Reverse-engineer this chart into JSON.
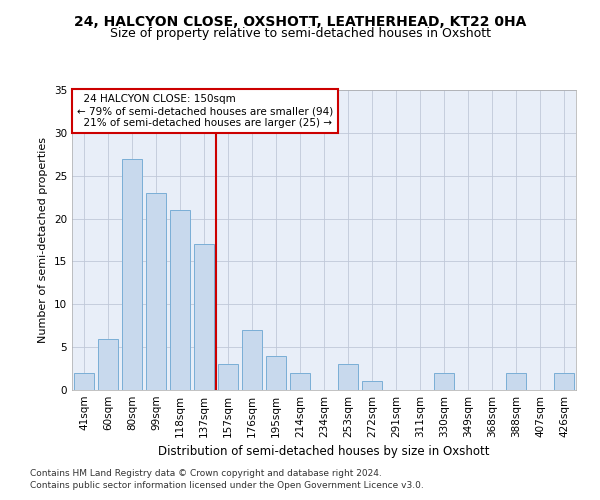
{
  "title1": "24, HALCYON CLOSE, OXSHOTT, LEATHERHEAD, KT22 0HA",
  "title2": "Size of property relative to semi-detached houses in Oxshott",
  "xlabel": "Distribution of semi-detached houses by size in Oxshott",
  "ylabel": "Number of semi-detached properties",
  "categories": [
    "41sqm",
    "60sqm",
    "80sqm",
    "99sqm",
    "118sqm",
    "137sqm",
    "157sqm",
    "176sqm",
    "195sqm",
    "214sqm",
    "234sqm",
    "253sqm",
    "272sqm",
    "291sqm",
    "311sqm",
    "330sqm",
    "349sqm",
    "368sqm",
    "388sqm",
    "407sqm",
    "426sqm"
  ],
  "values": [
    2,
    6,
    27,
    23,
    21,
    17,
    3,
    7,
    4,
    2,
    0,
    3,
    1,
    0,
    0,
    2,
    0,
    0,
    2,
    0,
    2
  ],
  "bar_color": "#c8d9ed",
  "bar_edge_color": "#7aaed6",
  "vline_color": "#cc0000",
  "vline_bin_index": 5.5,
  "property_label": "24 HALCYON CLOSE: 150sqm",
  "pct_smaller": 79,
  "n_smaller": 94,
  "pct_larger": 21,
  "n_larger": 25,
  "annotation_box_color": "#ffffff",
  "annotation_border_color": "#cc0000",
  "ylim": [
    0,
    35
  ],
  "yticks": [
    0,
    5,
    10,
    15,
    20,
    25,
    30,
    35
  ],
  "grid_color": "#c0c8d8",
  "bg_color": "#e8eef8",
  "footer1": "Contains HM Land Registry data © Crown copyright and database right 2024.",
  "footer2": "Contains public sector information licensed under the Open Government Licence v3.0.",
  "title1_fontsize": 10,
  "title2_fontsize": 9,
  "xlabel_fontsize": 8.5,
  "ylabel_fontsize": 8,
  "tick_fontsize": 7.5,
  "annot_fontsize": 7.5,
  "footer_fontsize": 6.5
}
